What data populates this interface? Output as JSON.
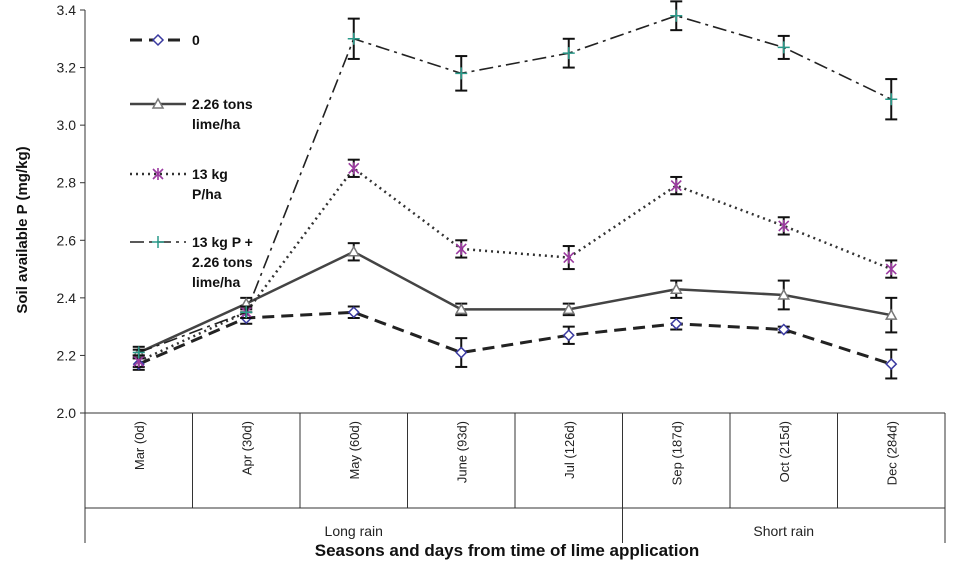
{
  "chart_data": {
    "type": "line",
    "xlabel": "Seasons and days from time of lime application",
    "ylabel": "Soil available P (mg/kg)",
    "ylim": [
      2.0,
      3.4
    ],
    "yticks": [
      "2.0",
      "2.2",
      "2.4",
      "2.6",
      "2.8",
      "3.0",
      "3.2",
      "3.4"
    ],
    "categories": [
      "Mar (0d)",
      "Apr (30d)",
      "May (60d)",
      "June (93d)",
      "Jul (126d)",
      "Sep (187d)",
      "Oct (215d)",
      "Dec (284d)"
    ],
    "seasons": [
      {
        "label": "Long rain",
        "start": 0,
        "end": 5
      },
      {
        "label": "Short rain",
        "start": 5,
        "end": 8
      }
    ],
    "legend_position": "top-left inside",
    "grid": false,
    "series": [
      {
        "name_lines": [
          "0"
        ],
        "values": [
          2.17,
          2.33,
          2.35,
          2.21,
          2.27,
          2.31,
          2.29,
          2.17
        ],
        "errors": [
          0.02,
          0.02,
          0.02,
          0.05,
          0.03,
          0.02,
          0.01,
          0.05
        ],
        "color": "#222222",
        "marker_color": "#3a3aa0",
        "marker": "diamond",
        "dash": "12,7",
        "width": 3
      },
      {
        "name_lines": [
          "2.26 tons",
          "lime/ha"
        ],
        "values": [
          2.21,
          2.38,
          2.56,
          2.36,
          2.36,
          2.43,
          2.41,
          2.34
        ],
        "errors": [
          0.02,
          0.02,
          0.03,
          0.02,
          0.02,
          0.03,
          0.05,
          0.06
        ],
        "color": "#444444",
        "marker_color": "#777777",
        "marker": "triangle",
        "dash": "",
        "width": 2.5
      },
      {
        "name_lines": [
          "13 kg",
          "P/ha"
        ],
        "values": [
          2.18,
          2.35,
          2.85,
          2.57,
          2.54,
          2.79,
          2.65,
          2.5
        ],
        "errors": [
          0.02,
          0.02,
          0.03,
          0.03,
          0.04,
          0.03,
          0.03,
          0.03
        ],
        "color": "#333333",
        "marker_color": "#9b3aa0",
        "marker": "star",
        "dash": "2,4",
        "width": 2.5
      },
      {
        "name_lines": [
          "13 kg P +",
          "2.26 tons",
          "lime/ha"
        ],
        "values": [
          2.21,
          2.35,
          3.3,
          3.18,
          3.25,
          3.38,
          3.27,
          3.09
        ],
        "errors": [
          0.01,
          0.02,
          0.07,
          0.06,
          0.05,
          0.05,
          0.04,
          0.07
        ],
        "color": "#222222",
        "marker_color": "#2a9a8a",
        "marker": "plus",
        "dash": "14,5,3,5",
        "width": 1.6
      }
    ]
  }
}
